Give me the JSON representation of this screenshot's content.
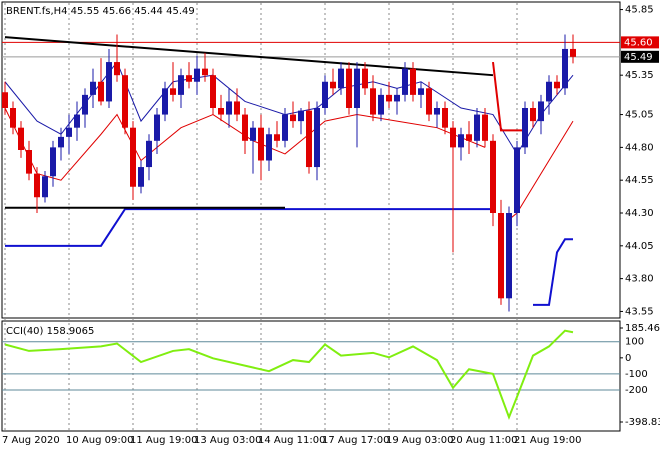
{
  "chart_data": {
    "type": "candlestick",
    "title": "BRENT.fs,H4  45.55 45.66 45.44 45.49",
    "up_color": "#1a1aa8",
    "down_color": "#e00000",
    "categories": [
      "7 Aug 2020",
      null,
      null,
      null,
      null,
      null,
      null,
      null,
      "10 Aug 09:00",
      null,
      null,
      null,
      null,
      null,
      null,
      null,
      "11 Aug 19:00",
      null,
      null,
      null,
      null,
      null,
      null,
      null,
      "13 Aug 03:00",
      null,
      null,
      null,
      null,
      null,
      null,
      null,
      "14 Aug 11:00",
      null,
      null,
      null,
      null,
      null,
      null,
      null,
      "17 Aug 17:00",
      null,
      null,
      null,
      null,
      null,
      null,
      null,
      "19 Aug 03:00",
      null,
      null,
      null,
      null,
      null,
      null,
      null,
      "20 Aug 11:00",
      null,
      null,
      null,
      null,
      null,
      null,
      null,
      "21 Aug 19:00",
      null,
      null,
      null,
      null,
      null,
      null,
      null
    ],
    "open": [
      45.22,
      45.1,
      44.95,
      44.78,
      44.6,
      44.42,
      44.58,
      44.8,
      44.88,
      44.95,
      45.05,
      45.2,
      45.3,
      45.15,
      45.45,
      45.35,
      44.95,
      44.5,
      44.65,
      44.85,
      45.05,
      45.25,
      45.2,
      45.35,
      45.3,
      45.4,
      45.35,
      45.1,
      45.05,
      45.15,
      45.05,
      44.85,
      44.95,
      44.7,
      44.9,
      44.85,
      45.05,
      45.0,
      45.08,
      44.65,
      45.1,
      45.3,
      45.25,
      45.4,
      45.1,
      45.4,
      45.25,
      45.05,
      45.2,
      45.15,
      45.2,
      45.4,
      45.2,
      45.25,
      45.05,
      45.1,
      44.95,
      44.8,
      44.9,
      44.85,
      45.05,
      44.85,
      44.3,
      43.65,
      44.3,
      44.8,
      45.1,
      45.0,
      45.15,
      45.3,
      45.25,
      45.55
    ],
    "high": [
      45.3,
      45.15,
      45.0,
      44.85,
      44.65,
      44.62,
      44.85,
      44.95,
      45.05,
      45.15,
      45.25,
      45.4,
      45.48,
      45.55,
      45.66,
      45.4,
      45.0,
      44.7,
      44.9,
      45.1,
      45.3,
      45.45,
      45.4,
      45.45,
      45.5,
      45.52,
      45.4,
      45.2,
      45.25,
      45.25,
      45.1,
      45.0,
      45.05,
      44.95,
      45.0,
      45.1,
      45.15,
      45.1,
      45.15,
      45.15,
      45.35,
      45.4,
      45.45,
      45.45,
      45.45,
      45.45,
      45.35,
      45.25,
      45.3,
      45.25,
      45.45,
      45.45,
      45.3,
      45.3,
      45.15,
      45.15,
      45.0,
      44.95,
      45.0,
      45.1,
      45.1,
      44.9,
      44.4,
      44.35,
      44.85,
      45.15,
      45.15,
      45.2,
      45.35,
      45.35,
      45.66,
      45.66
    ],
    "low": [
      45.05,
      44.9,
      44.72,
      44.55,
      44.3,
      44.38,
      44.5,
      44.7,
      44.75,
      44.85,
      44.95,
      45.1,
      45.12,
      45.1,
      45.3,
      44.9,
      44.4,
      44.45,
      44.55,
      44.75,
      45.0,
      45.15,
      45.1,
      45.25,
      45.2,
      45.3,
      45.05,
      45.0,
      44.95,
      45.0,
      44.75,
      44.6,
      44.55,
      44.62,
      44.8,
      44.8,
      44.95,
      44.9,
      44.6,
      44.55,
      45.05,
      45.2,
      45.2,
      45.05,
      44.8,
      45.2,
      45.0,
      45.0,
      45.1,
      45.05,
      45.15,
      45.15,
      45.1,
      45.0,
      44.95,
      44.9,
      44.0,
      44.7,
      44.75,
      44.8,
      44.8,
      44.2,
      43.6,
      43.55,
      44.2,
      44.75,
      44.95,
      44.9,
      45.05,
      45.2,
      45.2,
      45.44
    ],
    "close": [
      45.1,
      44.95,
      44.78,
      44.6,
      44.42,
      44.58,
      44.8,
      44.88,
      44.95,
      45.05,
      45.2,
      45.3,
      45.15,
      45.45,
      45.35,
      44.95,
      44.5,
      44.65,
      44.85,
      45.05,
      45.25,
      45.2,
      45.35,
      45.3,
      45.4,
      45.35,
      45.1,
      45.05,
      45.15,
      45.05,
      44.85,
      44.95,
      44.7,
      44.9,
      44.85,
      45.05,
      45.0,
      45.08,
      44.65,
      45.1,
      45.3,
      45.25,
      45.4,
      45.1,
      45.4,
      45.25,
      45.05,
      45.2,
      45.15,
      45.2,
      45.4,
      45.2,
      45.25,
      45.05,
      45.1,
      44.95,
      44.8,
      44.9,
      44.85,
      45.05,
      44.85,
      44.3,
      43.65,
      44.3,
      44.8,
      45.1,
      45.0,
      45.15,
      45.3,
      45.25,
      45.55,
      45.49
    ],
    "ylim": [
      43.5,
      45.9
    ],
    "yticks": [
      45.85,
      45.35,
      45.05,
      {
        "value": 44.8,
        "label": "44.80"
      },
      44.55,
      {
        "value": 44.3,
        "label": "44.30"
      },
      44.05,
      {
        "value": 43.8,
        "label": "43.80"
      },
      43.55
    ],
    "red_line": {
      "value": 45.6,
      "label": "45.60",
      "color": "#e00000"
    },
    "last_line": {
      "value": 45.49,
      "label": "45.49",
      "color": "#9a9a9a"
    },
    "overlays": [
      {
        "color": "#1a1aa8",
        "width": 1,
        "x": [
          0,
          4,
          7,
          14,
          17,
          21,
          26,
          30,
          35,
          39,
          42,
          46,
          49,
          52,
          57,
          61,
          64,
          67,
          71
        ],
        "values": [
          45.3,
          45.0,
          44.9,
          45.45,
          45.0,
          45.3,
          45.35,
          45.15,
          45.05,
          45.1,
          45.25,
          45.3,
          45.25,
          45.3,
          45.1,
          45.05,
          44.75,
          45.05,
          45.35
        ]
      },
      {
        "color": "#e00000",
        "width": 1,
        "x": [
          0,
          4,
          7,
          12,
          14,
          17,
          22,
          26,
          31,
          35,
          40,
          44,
          49,
          54,
          58,
          60,
          61,
          63,
          64,
          71
        ],
        "values": [
          45.1,
          44.6,
          44.55,
          44.9,
          45.05,
          44.7,
          44.95,
          45.05,
          44.85,
          44.75,
          45.0,
          45.05,
          45.0,
          44.95,
          44.85,
          44.8,
          null,
          44.25,
          44.3,
          45.0
        ]
      },
      {
        "color": "#e00000",
        "width": 2,
        "x": [
          61,
          62,
          65
        ],
        "values": [
          45.45,
          44.93,
          44.93
        ]
      },
      {
        "color": "#1010d0",
        "width": 2,
        "x": [
          0,
          12,
          15,
          61,
          62,
          66,
          68,
          69,
          70,
          71
        ],
        "values": [
          44.05,
          44.05,
          44.33,
          44.33,
          null,
          43.6,
          43.6,
          44.0,
          44.1,
          44.1
        ]
      },
      {
        "color": "#000000",
        "width": 2,
        "x": [
          0,
          61
        ],
        "values": [
          45.64,
          45.35
        ]
      },
      {
        "color": "#000000",
        "width": 2,
        "x": [
          0,
          35
        ],
        "values": [
          44.34,
          44.34
        ]
      }
    ],
    "cci": {
      "label": "CCI(40) 158.9065",
      "color": "#80ee10",
      "level_color": "#5f8a9a",
      "ylim": [
        -398.838,
        185.4658
      ],
      "yticks": [
        185.4658,
        100,
        0,
        -100,
        -200,
        -398.838
      ],
      "x": [
        0,
        3,
        7,
        12,
        14,
        17,
        21,
        23,
        26,
        31,
        33,
        36,
        38,
        40,
        42,
        46,
        48,
        51,
        54,
        56,
        58,
        61,
        63,
        64,
        66,
        68,
        70,
        71
      ],
      "values": [
        83,
        43,
        54,
        71,
        89,
        -26,
        43,
        54,
        -3,
        -60,
        -83,
        -14,
        -26,
        83,
        14,
        31,
        3,
        71,
        -14,
        -186,
        -71,
        -100,
        -369,
        -243,
        14,
        71,
        169,
        158.9065
      ]
    }
  }
}
